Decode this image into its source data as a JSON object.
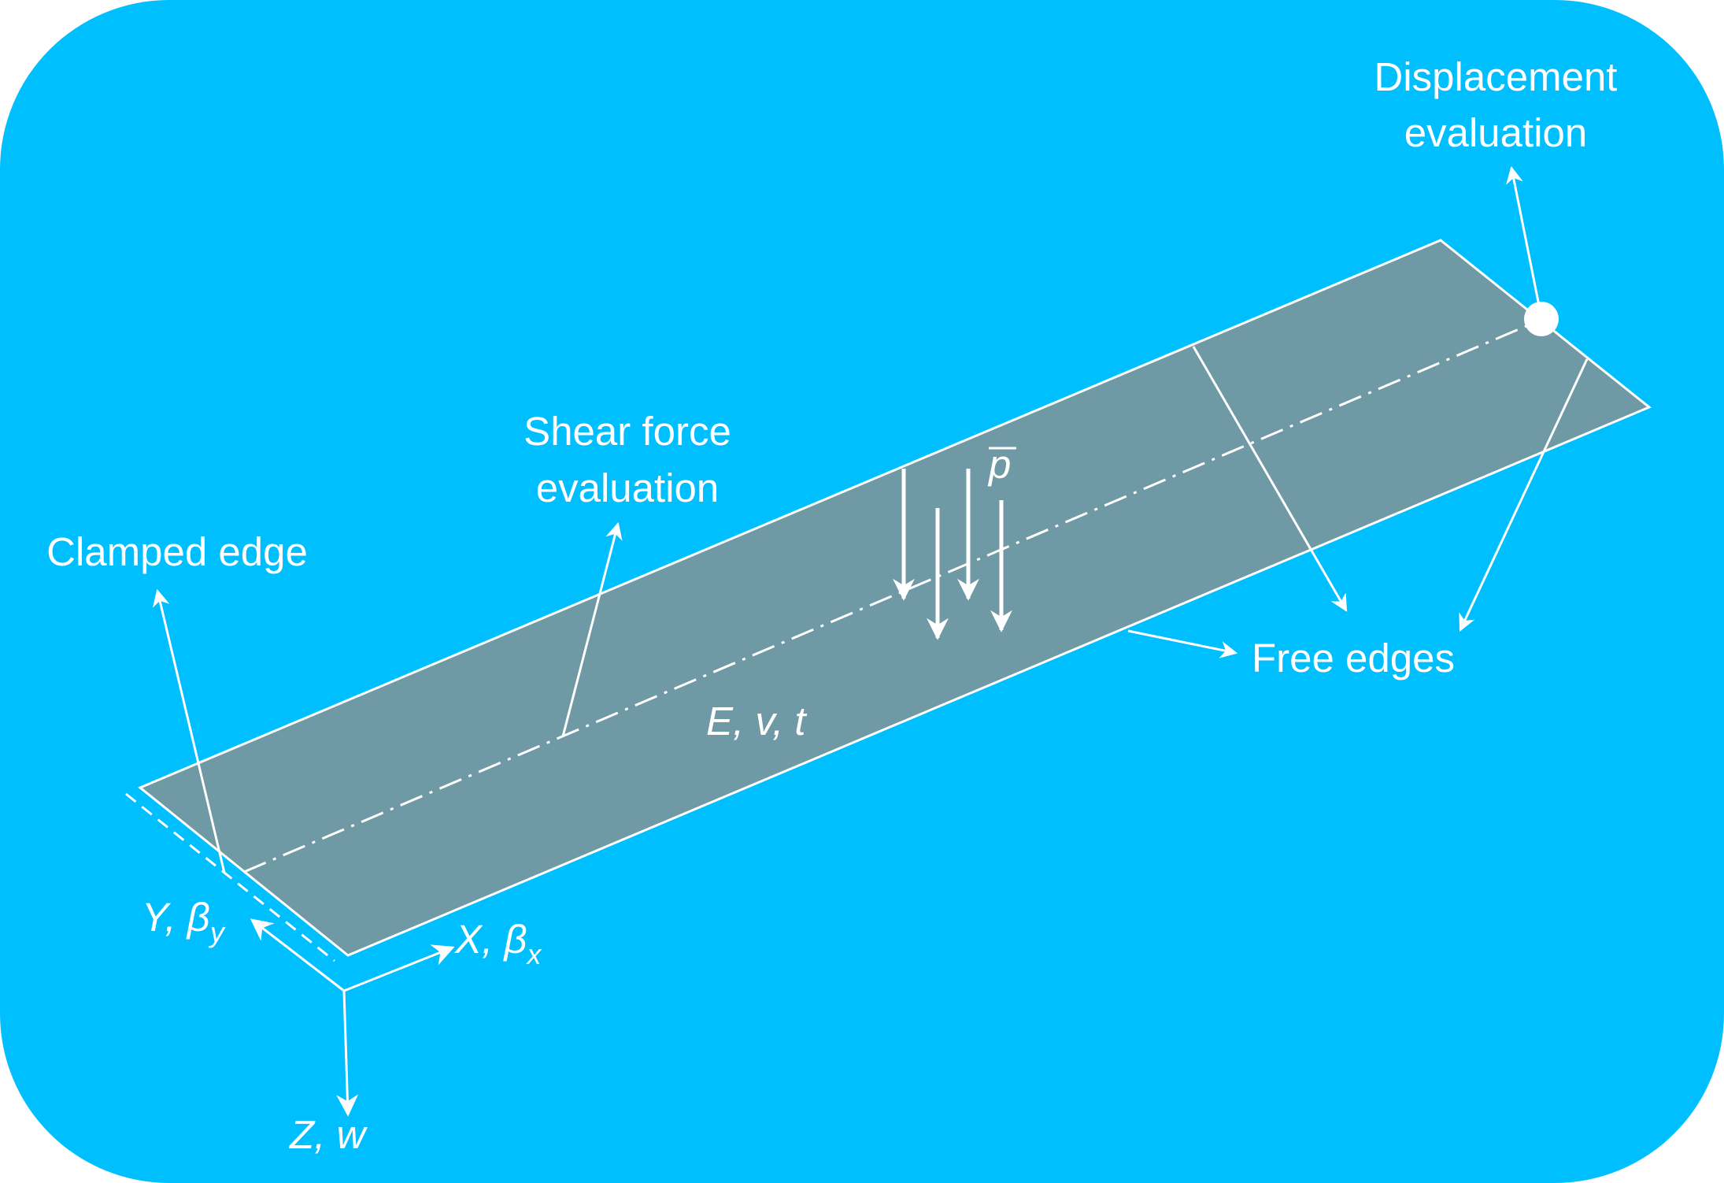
{
  "colors": {
    "background": "#00bfff",
    "plate": "#6f99a5",
    "stroke": "#ffffff"
  },
  "labels": {
    "displacement_line1": "Displacement",
    "displacement_line2": "evaluation",
    "shear_line1": "Shear force",
    "shear_line2": "evaluation",
    "clamped": "Clamped edge",
    "free": "Free edges",
    "load": "p",
    "material": "E, v, t",
    "axis_y": "Y, β",
    "axis_y_sub": "y",
    "axis_x": "X, β",
    "axis_x_sub": "x",
    "axis_z": "Z, w"
  }
}
